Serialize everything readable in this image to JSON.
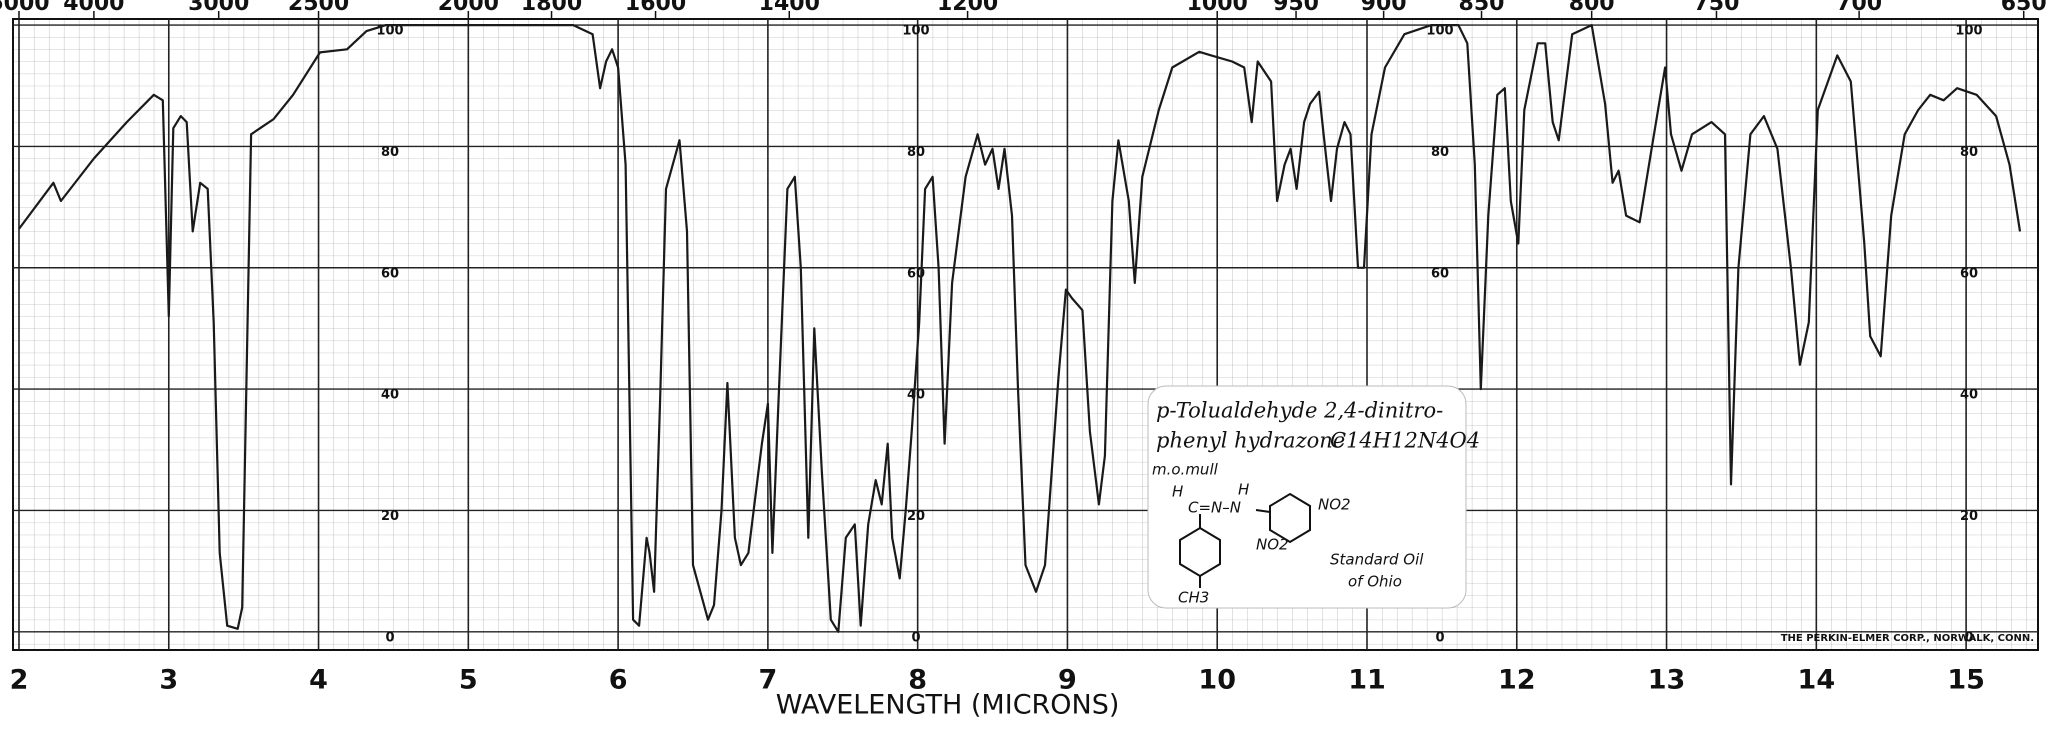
{
  "chart_data": {
    "type": "line",
    "xlabel": "WAVELENGTH (MICRONS)",
    "xlim": [
      1.96,
      15.48
    ],
    "ylim": [
      -3,
      101
    ],
    "xticks": [
      2,
      3,
      4,
      5,
      6,
      7,
      8,
      9,
      10,
      11,
      12,
      13,
      14,
      15
    ],
    "yticks": [
      0,
      20,
      40,
      60,
      80,
      100
    ],
    "x2ticks": [
      5000,
      4000,
      3000,
      2500,
      2000,
      1800,
      1600,
      1400,
      1200,
      1000,
      950,
      900,
      850,
      800,
      750,
      700,
      650
    ],
    "grid": true,
    "color": "#1a1a1a",
    "x": [
      2.0,
      2.23,
      2.28,
      2.5,
      2.72,
      2.9,
      2.96,
      3.0,
      3.03,
      3.08,
      3.12,
      3.16,
      3.21,
      3.26,
      3.3,
      3.34,
      3.39,
      3.46,
      3.49,
      3.55,
      3.61,
      3.7,
      3.83,
      4.01,
      4.19,
      4.32,
      4.45,
      5.7,
      5.83,
      5.88,
      5.92,
      5.96,
      6.0,
      6.05,
      6.1,
      6.14,
      6.19,
      6.21,
      6.24,
      6.28,
      6.32,
      6.41,
      6.46,
      6.5,
      6.6,
      6.64,
      6.69,
      6.73,
      6.78,
      6.82,
      6.87,
      6.96,
      7.0,
      7.03,
      7.07,
      7.13,
      7.18,
      7.22,
      7.27,
      7.31,
      7.36,
      7.42,
      7.47,
      7.52,
      7.58,
      7.62,
      7.67,
      7.72,
      7.76,
      7.8,
      7.83,
      7.88,
      7.92,
      7.96,
      8.01,
      8.05,
      8.1,
      8.14,
      8.18,
      8.23,
      8.32,
      8.4,
      8.45,
      8.5,
      8.54,
      8.58,
      8.63,
      8.67,
      8.72,
      8.79,
      8.85,
      8.94,
      8.99,
      9.03,
      9.1,
      9.15,
      9.21,
      9.25,
      9.3,
      9.34,
      9.41,
      9.45,
      9.5,
      9.61,
      9.7,
      9.88,
      9.96,
      10.1,
      10.18,
      10.23,
      10.27,
      10.36,
      10.4,
      10.45,
      10.49,
      10.53,
      10.58,
      10.62,
      10.68,
      10.71,
      10.76,
      10.8,
      10.85,
      10.89,
      10.94,
      10.98,
      11.03,
      11.12,
      11.25,
      11.43,
      11.61,
      11.67,
      11.72,
      11.76,
      11.81,
      11.87,
      11.92,
      11.96,
      12.01,
      12.05,
      12.14,
      12.19,
      12.24,
      12.28,
      12.37,
      12.5,
      12.59,
      12.64,
      12.68,
      12.73,
      12.82,
      12.9,
      12.99,
      13.03,
      13.1,
      13.17,
      13.3,
      13.39,
      13.43,
      13.48,
      13.56,
      13.65,
      13.74,
      13.83,
      13.89,
      13.95,
      14.01,
      14.14,
      14.23,
      14.32,
      14.36,
      14.43,
      14.5,
      14.59,
      14.68,
      14.76,
      14.85,
      14.94,
      15.07,
      15.2,
      15.29,
      15.36
    ],
    "values": [
      66.4,
      74,
      71,
      78,
      84,
      88.5,
      87.6,
      52,
      83,
      85,
      84,
      66,
      74,
      73,
      51,
      13,
      1,
      0.5,
      4,
      82,
      83,
      84.5,
      88.5,
      95.5,
      96,
      99,
      100,
      100,
      98.5,
      89.6,
      94,
      96,
      93,
      77,
      2,
      1,
      15.5,
      13,
      6.6,
      37.6,
      73,
      81,
      66,
      11,
      2,
      4.4,
      20,
      41,
      15.5,
      11,
      13,
      31,
      37.6,
      13,
      37.6,
      73,
      75,
      60,
      15.5,
      50,
      26.5,
      2,
      0,
      15.5,
      17.7,
      1,
      17.7,
      25,
      21,
      31,
      15.5,
      8.8,
      20,
      33,
      51,
      73,
      75,
      60,
      31,
      57.5,
      75,
      82,
      77,
      79.6,
      73,
      79.6,
      68.6,
      40,
      11,
      6.6,
      11,
      42,
      56.4,
      55,
      53,
      33,
      21,
      29,
      71,
      81,
      71,
      57.5,
      75,
      86,
      93,
      95.6,
      95,
      94,
      93,
      84,
      94,
      90.7,
      71,
      77,
      79.6,
      73,
      84,
      87,
      89,
      82,
      71,
      79.6,
      84,
      82,
      60,
      60,
      82,
      93,
      98.5,
      100,
      100,
      97,
      77,
      40,
      68.6,
      88.5,
      89.6,
      71,
      64,
      86,
      97,
      97,
      84,
      81,
      98.5,
      100,
      87,
      74,
      76,
      68.6,
      67.5,
      79.6,
      93,
      82,
      76,
      82,
      84,
      82,
      24.3,
      60,
      82,
      85,
      79.6,
      60,
      44,
      51,
      86,
      95,
      90.7,
      64,
      48.7,
      45.4,
      68.6,
      82,
      86,
      88.5,
      87.6,
      89.6,
      88.5,
      85,
      77,
      66
    ],
    "annotation": {
      "name_line1": "p-Tolualdehyde 2,4-dinitro-",
      "name_line2": "phenyl hydrazone",
      "formula": "C14H12N4O4",
      "medium": "m.o.mull",
      "struct_h1": "H",
      "struct_chain": "C=N–N",
      "struct_h2": "H",
      "struct_no2_a": "NO2",
      "struct_no2_b": "NO2",
      "struct_ch3": "CH3",
      "source_line1": "Standard Oil",
      "source_line2": "of Ohio"
    },
    "footer": "THE PERKIN-ELMER CORP., NORWALK, CONN."
  }
}
